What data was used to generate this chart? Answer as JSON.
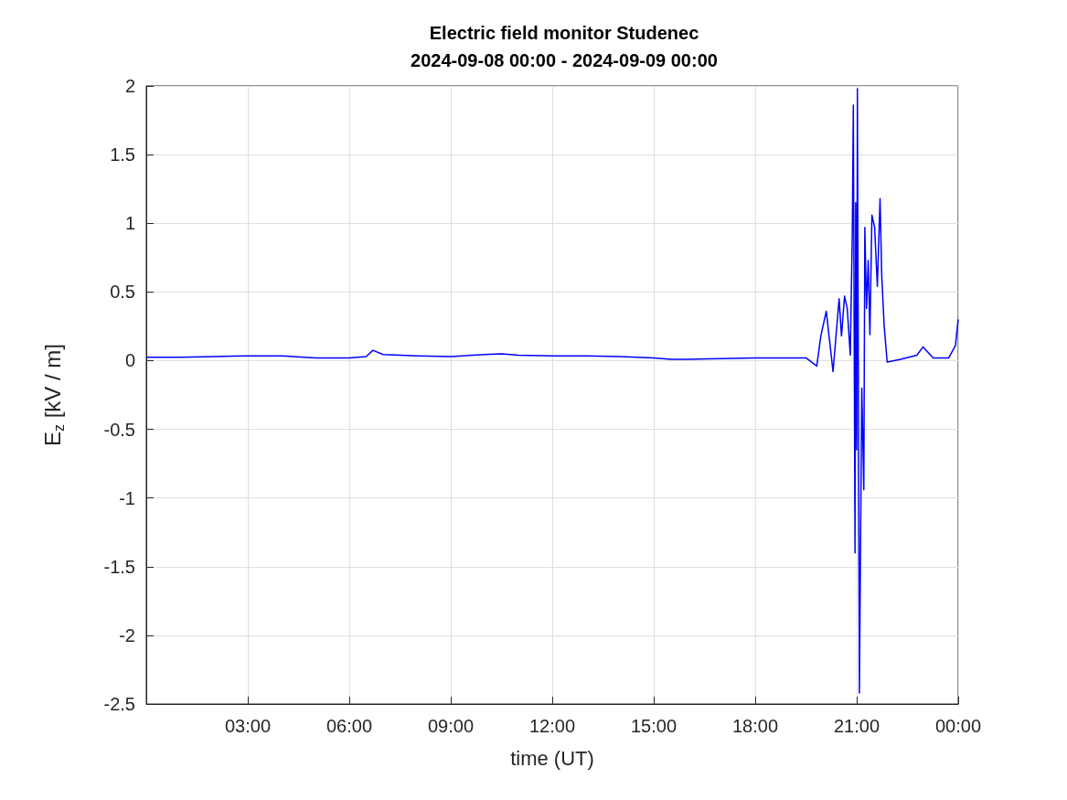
{
  "chart_data": {
    "type": "line",
    "title": "Electric field monitor Studenec",
    "subtitle": "2024-09-08 00:00 - 2024-09-09 00:00",
    "xlabel": "time (UT)",
    "ylabel": "E$_{z}$ [kV / m]",
    "x": [
      0,
      1,
      2,
      3,
      4,
      5,
      6,
      6.5,
      6.7,
      7,
      8,
      9,
      10,
      10.5,
      11,
      12,
      13,
      14,
      15,
      15.5,
      16,
      17,
      18,
      18.8,
      19.5,
      19.82,
      19.94,
      20.1,
      20.2,
      20.3,
      20.48,
      20.55,
      20.64,
      20.72,
      20.81,
      20.87,
      20.9,
      20.95,
      20.97,
      21.0,
      21.02,
      21.08,
      21.15,
      21.21,
      21.24,
      21.29,
      21.34,
      21.39,
      21.45,
      21.53,
      21.61,
      21.69,
      21.74,
      21.81,
      21.9,
      22.3,
      22.78,
      22.96,
      23.26,
      23.72,
      23.92,
      24
    ],
    "series": [
      {
        "color": "#0000ff",
        "values": [
          0.025,
          0.025,
          0.03,
          0.035,
          0.035,
          0.02,
          0.02,
          0.03,
          0.075,
          0.045,
          0.035,
          0.03,
          0.045,
          0.05,
          0.04,
          0.035,
          0.035,
          0.03,
          0.02,
          0.01,
          0.01,
          0.015,
          0.02,
          0.02,
          0.02,
          -0.04,
          0.18,
          0.36,
          0.14,
          -0.08,
          0.45,
          0.18,
          0.47,
          0.38,
          0.04,
          0.94,
          1.86,
          -1.4,
          1.15,
          -0.65,
          1.98,
          -2.42,
          -0.2,
          -0.94,
          0.97,
          0.38,
          0.73,
          0.19,
          1.06,
          0.97,
          0.54,
          1.18,
          0.62,
          0.26,
          -0.01,
          0.01,
          0.04,
          0.1,
          0.02,
          0.02,
          0.11,
          0.3
        ]
      }
    ],
    "xlim": [
      0,
      24
    ],
    "xticks": [
      {
        "value": 3,
        "label": "03:00"
      },
      {
        "value": 6,
        "label": "06:00"
      },
      {
        "value": 9,
        "label": "09:00"
      },
      {
        "value": 12,
        "label": "12:00"
      },
      {
        "value": 15,
        "label": "15:00"
      },
      {
        "value": 18,
        "label": "18:00"
      },
      {
        "value": 21,
        "label": "21:00"
      },
      {
        "value": 24,
        "label": "00:00"
      }
    ],
    "ylim": [
      -2.5,
      2
    ],
    "yticks": [
      -2.5,
      -2,
      -1.5,
      -1,
      -0.5,
      0,
      0.5,
      1,
      1.5,
      2
    ],
    "grid": true,
    "marker": "none",
    "line_style": "solid"
  }
}
